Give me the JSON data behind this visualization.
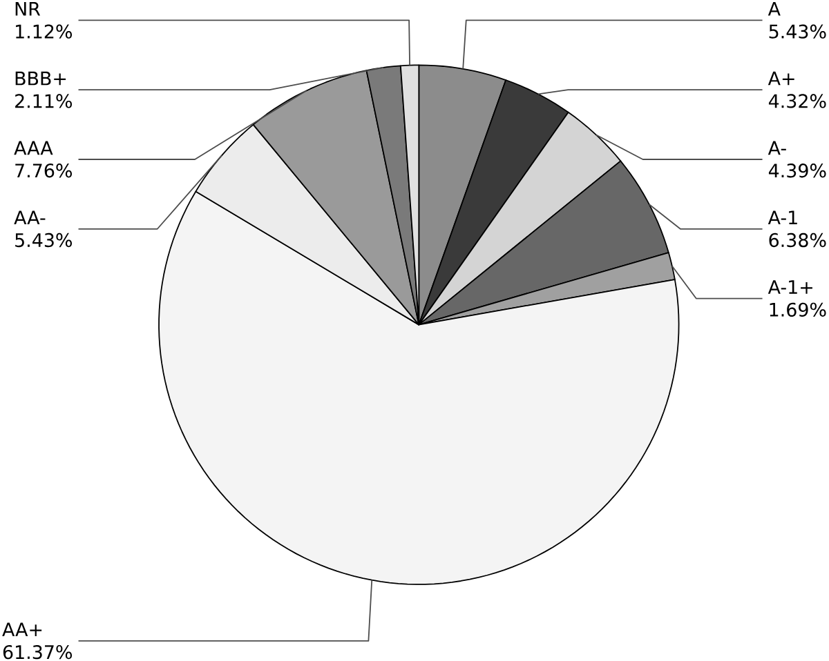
{
  "chart_data": {
    "type": "pie",
    "categories": [
      "A",
      "A+",
      "A-",
      "A-1",
      "A-1+",
      "AA+",
      "AA-",
      "AAA",
      "BBB+",
      "NR"
    ],
    "values": [
      5.43,
      4.32,
      4.39,
      6.38,
      1.69,
      61.37,
      5.43,
      7.76,
      2.11,
      1.12
    ],
    "value_labels": [
      "5.43%",
      "4.32%",
      "4.39%",
      "6.38%",
      "1.69%",
      "61.37%",
      "5.43%",
      "7.76%",
      "2.11%",
      "1.12%"
    ],
    "colors": [
      "#8c8c8c",
      "#3a3a3a",
      "#d4d4d4",
      "#676767",
      "#a0a0a0",
      "#f4f4f4",
      "#ececec",
      "#9a9a9a",
      "#7a7a7a",
      "#e0e0e0"
    ]
  }
}
